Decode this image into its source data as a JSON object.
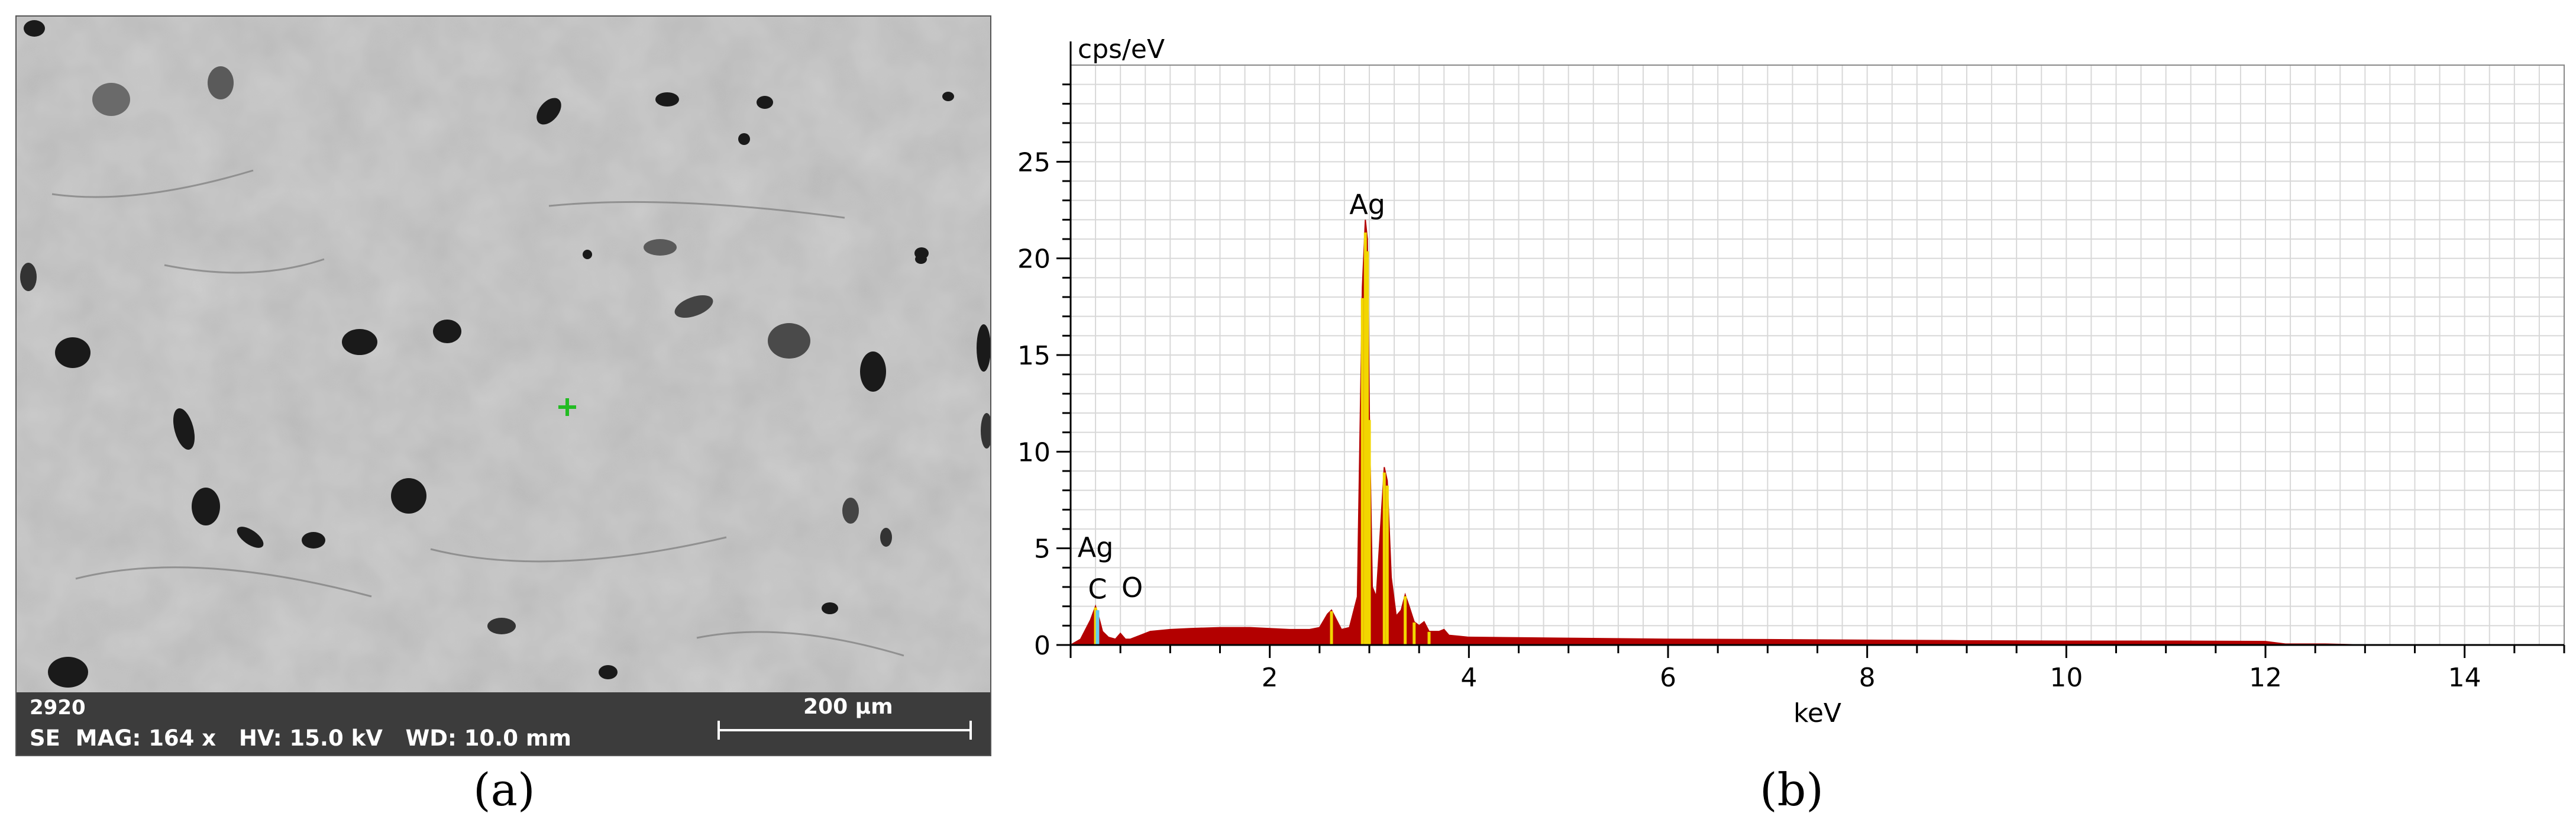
{
  "panel_a": {
    "caption": "(a)",
    "info_id": "2920",
    "info_params": "SE  MAG: 164 x   HV: 15.0 kV   WD: 10.0 mm",
    "scale_label": "200 µm",
    "marker_color": "#22bb22"
  },
  "panel_b": {
    "caption": "(b)"
  },
  "chart_data": {
    "type": "area",
    "xlabel": "keV",
    "ylabel": "cps/eV",
    "xlim": [
      0,
      15
    ],
    "ylim": [
      0,
      30
    ],
    "x_ticks": [
      2,
      4,
      6,
      8,
      10,
      12,
      14
    ],
    "y_ticks": [
      0,
      5,
      10,
      15,
      20,
      25
    ],
    "grid": true,
    "fill_color": "#b30000",
    "highlight_color": "#f2d600",
    "spectrum": {
      "x": [
        0.0,
        0.1,
        0.2,
        0.25,
        0.28,
        0.32,
        0.38,
        0.45,
        0.5,
        0.55,
        0.6,
        0.7,
        0.8,
        1.0,
        1.2,
        1.5,
        1.8,
        2.0,
        2.2,
        2.4,
        2.5,
        2.58,
        2.62,
        2.67,
        2.72,
        2.8,
        2.88,
        2.93,
        2.96,
        2.98,
        3.0,
        3.03,
        3.07,
        3.1,
        3.15,
        3.18,
        3.22,
        3.27,
        3.32,
        3.36,
        3.4,
        3.45,
        3.5,
        3.55,
        3.6,
        3.7,
        3.75,
        3.8,
        3.9,
        4.0,
        5.0,
        6.0,
        7.0,
        8.0,
        9.0,
        10.0,
        11.0,
        12.0,
        12.2,
        12.6,
        13.0,
        14.0,
        15.0
      ],
      "y": [
        0.0,
        0.3,
        1.3,
        2.0,
        1.5,
        0.7,
        0.4,
        0.3,
        0.6,
        0.3,
        0.3,
        0.5,
        0.7,
        0.8,
        0.85,
        0.9,
        0.9,
        0.85,
        0.8,
        0.8,
        0.9,
        1.6,
        1.8,
        1.3,
        0.8,
        0.9,
        2.5,
        18.5,
        22.0,
        21.0,
        12.0,
        3.0,
        2.5,
        5.0,
        9.2,
        8.5,
        3.5,
        1.5,
        1.8,
        2.6,
        2.0,
        1.2,
        1.0,
        1.2,
        0.7,
        0.7,
        0.8,
        0.5,
        0.45,
        0.4,
        0.35,
        0.3,
        0.28,
        0.25,
        0.22,
        0.2,
        0.2,
        0.18,
        0.05,
        0.05,
        0.0,
        0.0,
        0.0
      ]
    },
    "annotations": [
      {
        "text": "Ag",
        "x": 2.98,
        "y": 22.0
      },
      {
        "text": "Ag",
        "x": 0.25,
        "y": 4.2
      },
      {
        "text": "C",
        "x": 0.27,
        "y": 2.1
      },
      {
        "text": "O",
        "x": 0.5,
        "y": 2.3
      }
    ]
  }
}
